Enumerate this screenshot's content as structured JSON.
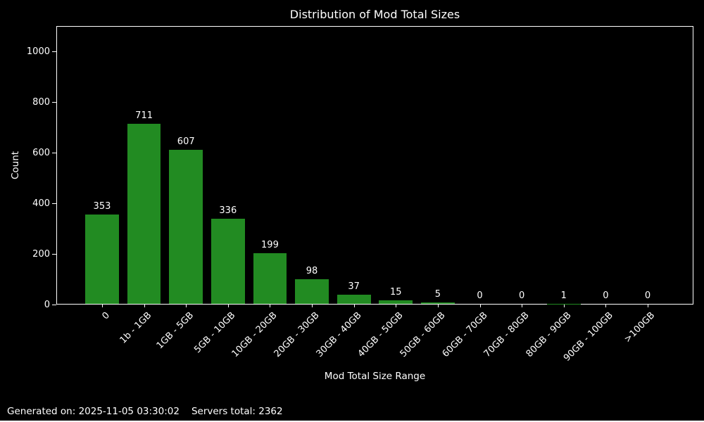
{
  "title": "Distribution of Mod Total Sizes",
  "footer": {
    "generated": "Generated on: 2025-11-05 03:30:02",
    "servers_total": "Servers total: 2362"
  },
  "colors": {
    "background": "#000000",
    "bar": "#228B22",
    "text": "#ffffff",
    "axis": "#ffffff"
  },
  "chart_data": {
    "type": "bar",
    "title": "Distribution of Mod Total Sizes",
    "xlabel": "Mod Total Size Range",
    "ylabel": "Count",
    "categories": [
      "0",
      "1b - 1GB",
      "1GB - 5GB",
      "5GB - 10GB",
      "10GB - 20GB",
      "20GB - 30GB",
      "30GB - 40GB",
      "40GB - 50GB",
      "50GB - 60GB",
      "60GB - 70GB",
      "70GB - 80GB",
      "80GB - 90GB",
      "90GB - 100GB",
      ">100GB"
    ],
    "values": [
      353,
      711,
      607,
      336,
      199,
      98,
      37,
      15,
      5,
      0,
      0,
      1,
      0,
      0
    ],
    "yticks": [
      0,
      200,
      400,
      600,
      800,
      1000
    ],
    "ylim": [
      0,
      1100
    ],
    "bar_color": "#228B22",
    "bar_width_fraction": 0.8,
    "grid": false,
    "value_labels": true,
    "xtick_rotation": 45,
    "legend": null
  }
}
